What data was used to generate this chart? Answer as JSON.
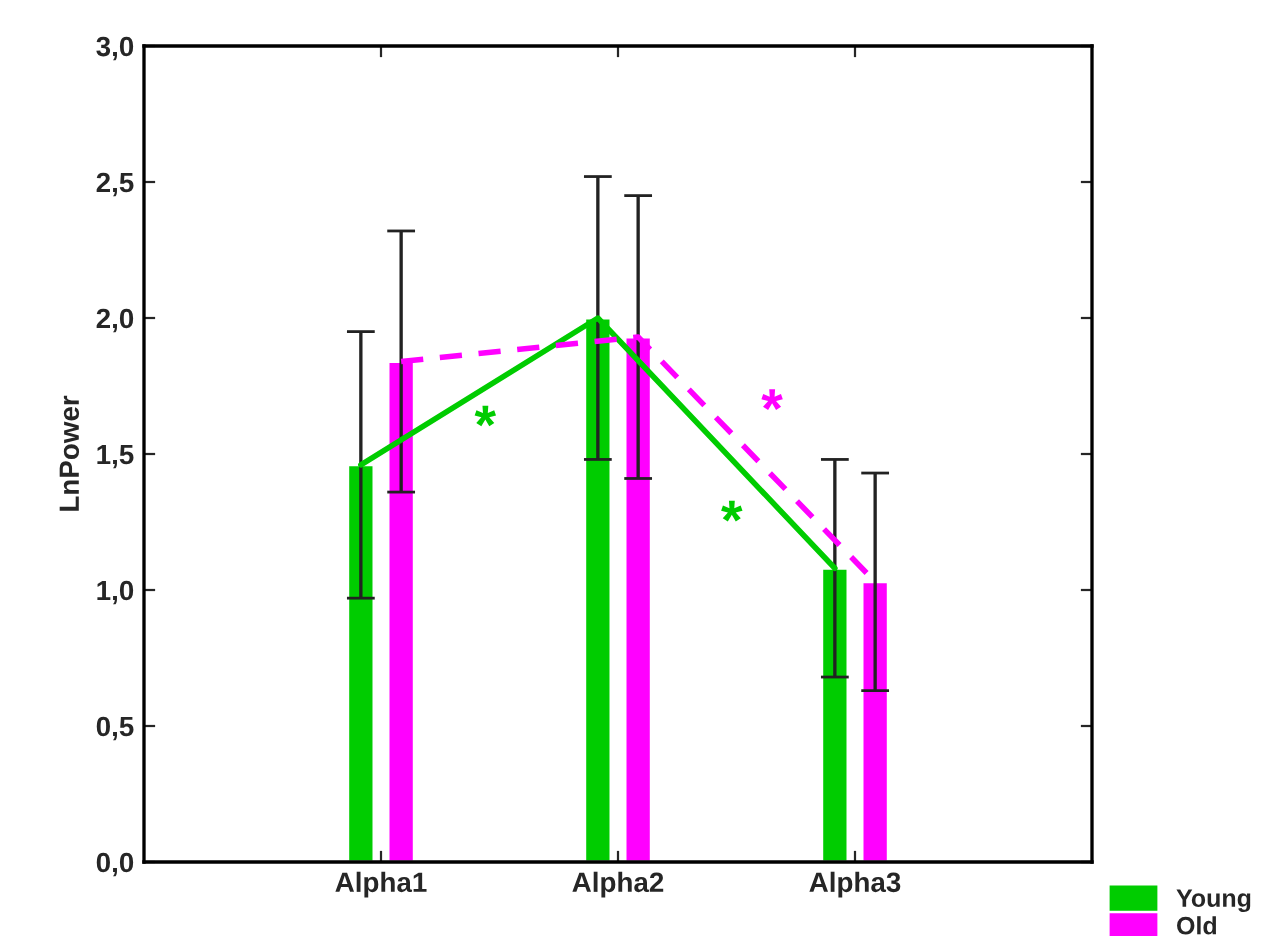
{
  "chart_data": {
    "type": "bar",
    "ylabel": "LnPower",
    "categories": [
      "Alpha1",
      "Alpha2",
      "Alpha3"
    ],
    "series": [
      {
        "name": "Young",
        "color": "#00cc00",
        "values": [
          1.46,
          2.0,
          1.08
        ],
        "errors": [
          0.49,
          0.52,
          0.4
        ]
      },
      {
        "name": "Old",
        "color": "#ff00ff",
        "values": [
          1.84,
          1.93,
          1.03
        ],
        "errors": [
          0.48,
          0.52,
          0.4
        ]
      },
      {
        "type": "line",
        "color": "#00cc00",
        "values": [
          1.46,
          2.0,
          1.08
        ],
        "line_style": "solid"
      },
      {
        "type": "line",
        "color": "#ff00ff",
        "values": [
          1.84,
          1.93,
          1.03
        ],
        "line_style": "dashed"
      }
    ],
    "annotations": [
      "*",
      "*",
      "*"
    ],
    "ylim": [
      0,
      3.0
    ],
    "yticks": [
      {
        "value": 0,
        "label": "0,0"
      },
      {
        "value": 0.5,
        "label": "0,5"
      },
      {
        "value": 1.0,
        "label": "1,0"
      },
      {
        "value": 1.5,
        "label": "1,5"
      },
      {
        "value": 2.0,
        "label": "2,0"
      },
      {
        "value": 2.5,
        "label": "2,5"
      },
      {
        "value": 3.0,
        "label": "3,0"
      }
    ],
    "grid": false,
    "legend": "bottom right"
  }
}
